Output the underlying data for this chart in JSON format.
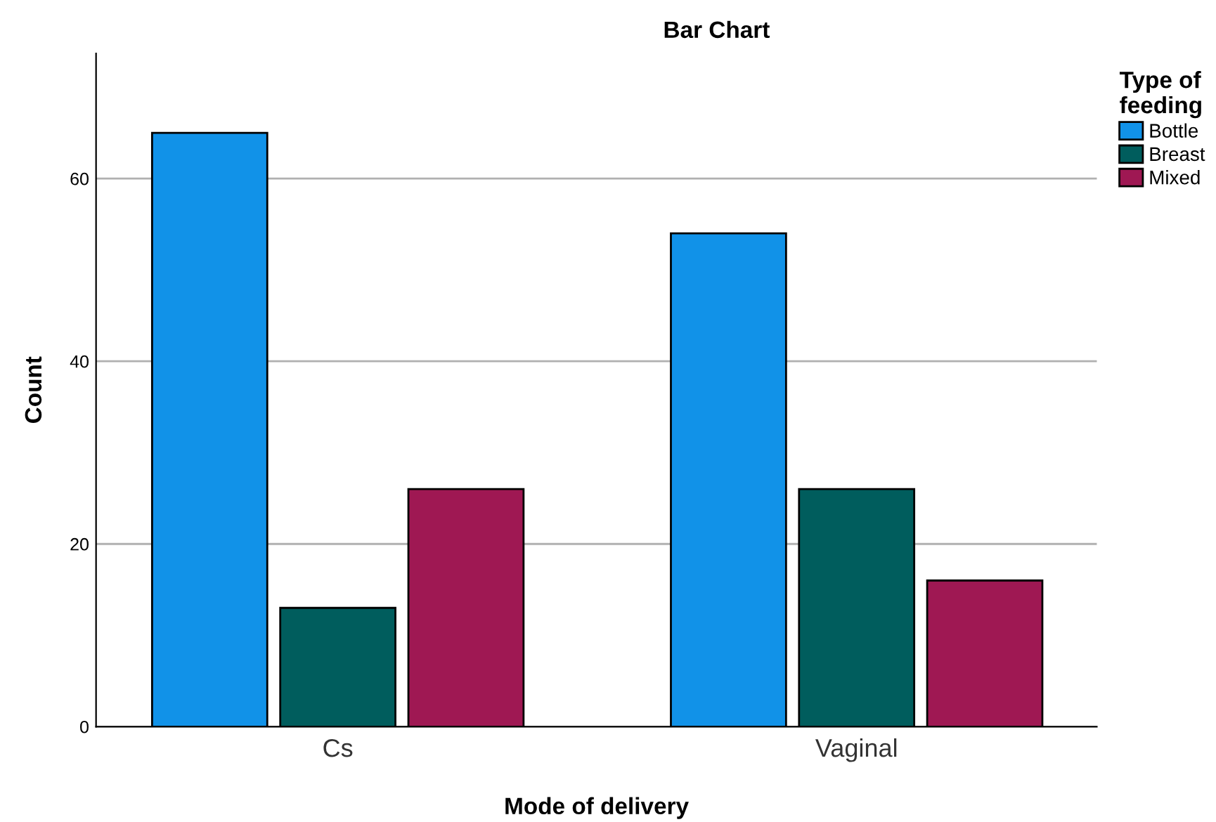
{
  "chart_data": {
    "type": "bar",
    "title": "Bar Chart",
    "xlabel": "Mode of delivery",
    "ylabel": "Count",
    "legend_title": "Type of\nfeeding",
    "categories": [
      "Cs",
      "Vaginal"
    ],
    "series": [
      {
        "name": "Bottle",
        "color": "#1192e8",
        "values": [
          65,
          54
        ]
      },
      {
        "name": "Breast",
        "color": "#005d5d",
        "values": [
          13,
          26
        ]
      },
      {
        "name": "Mixed",
        "color": "#9f1853",
        "values": [
          26,
          16
        ]
      }
    ],
    "ylim": [
      0,
      73.7
    ],
    "yticks": [
      0,
      20,
      40,
      60
    ],
    "grid": "y",
    "legend": "top right"
  }
}
